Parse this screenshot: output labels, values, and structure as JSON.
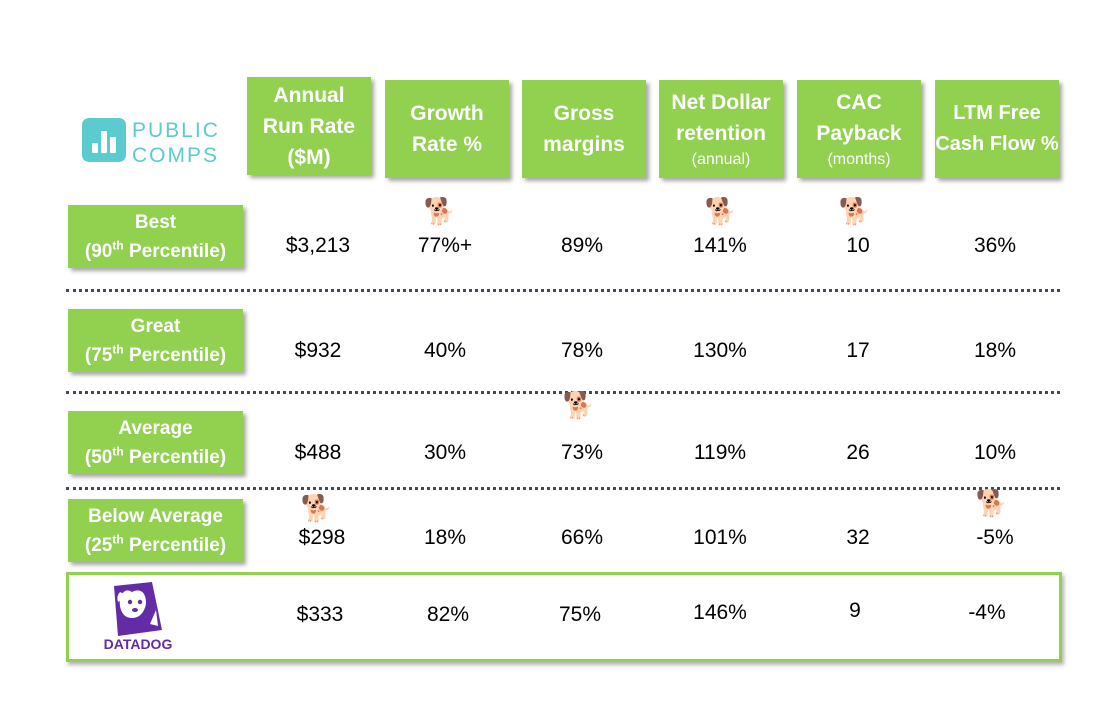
{
  "logo": {
    "line1": "PUBLIC",
    "line2": "COMPS"
  },
  "headers": [
    {
      "line1": "Annual",
      "line2": "Run Rate",
      "line3": "($M)"
    },
    {
      "line1": "Growth",
      "line2": "Rate %"
    },
    {
      "line1": "Gross",
      "line2": "margins"
    },
    {
      "line1": "Net Dollar",
      "line2": "retention",
      "sub": "(annual)"
    },
    {
      "line1": "CAC",
      "line2": "Payback",
      "sub": "(months)"
    },
    {
      "line1": "LTM Free",
      "line2": "Cash Flow %"
    }
  ],
  "rows": [
    {
      "label": "Best",
      "pct_num": "90",
      "pct_sup": "th",
      "pct_rest": " Percentile)",
      "values": [
        "$3,213",
        "77%+",
        "89%",
        "141%",
        "10",
        "36%"
      ]
    },
    {
      "label": "Great",
      "pct_num": "75",
      "pct_sup": "th",
      "pct_rest": " Percentile)",
      "values": [
        "$932",
        "40%",
        "78%",
        "130%",
        "17",
        "18%"
      ]
    },
    {
      "label": "Average",
      "pct_num": "50",
      "pct_sup": "th",
      "pct_rest": " Percentile)",
      "values": [
        "$488",
        "30%",
        "73%",
        "119%",
        "26",
        "10%"
      ]
    },
    {
      "label": "Below Average",
      "pct_num": "25",
      "pct_sup": "th",
      "pct_rest": " Percentile)",
      "values": [
        "$298",
        "18%",
        "66%",
        "101%",
        "32",
        "-5%"
      ]
    }
  ],
  "datadog": {
    "logo_text": "DATADOG",
    "values": [
      "$333",
      "82%",
      "75%",
      "146%",
      "9",
      "-4%"
    ]
  },
  "dog_icon": "🐕",
  "colors": {
    "green": "#92d050",
    "teal": "#5ccbd0",
    "purple": "#632ca6",
    "separator": "#3f4a5c"
  }
}
